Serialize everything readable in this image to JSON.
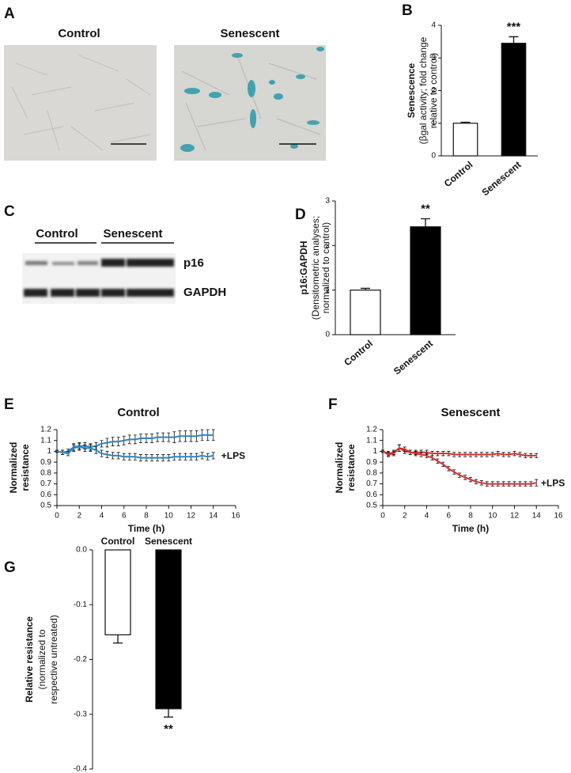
{
  "figure_panels": {
    "A": {
      "label": "A",
      "titles": [
        "Control",
        "Senescent"
      ]
    },
    "C": {
      "label": "C",
      "groups": [
        "Control",
        "Senescent"
      ],
      "bands": [
        "p16",
        "GAPDH"
      ]
    }
  },
  "chart_data": [
    {
      "type": "bar",
      "label": "B",
      "categories": [
        "Control",
        "Senescent"
      ],
      "values": [
        1.0,
        3.45
      ],
      "errors": [
        0.03,
        0.2
      ],
      "colors": [
        "#ffffff",
        "#000000"
      ],
      "ylim": [
        0,
        4
      ],
      "yticks": [
        0,
        1,
        2,
        3,
        4
      ],
      "ylabel": [
        "Senescence",
        "(βgal activity; fold change",
        "relative to control)"
      ],
      "annotations": [
        {
          "text": "***",
          "index": 1
        }
      ]
    },
    {
      "type": "bar",
      "label": "D",
      "categories": [
        "Control",
        "Senescent"
      ],
      "values": [
        1.0,
        2.42
      ],
      "errors": [
        0.04,
        0.18
      ],
      "colors": [
        "#ffffff",
        "#000000"
      ],
      "ylim": [
        0,
        3
      ],
      "yticks": [
        0,
        1,
        2,
        3
      ],
      "ylabel": [
        "p16:GAPDH",
        "(Densitometric analyses;",
        "normalized to control)"
      ],
      "annotations": [
        {
          "text": "**",
          "index": 1
        }
      ]
    },
    {
      "type": "line",
      "label": "E",
      "title": "Control",
      "x": [
        0,
        0.5,
        1,
        1.5,
        2,
        2.5,
        3,
        3.5,
        4,
        4.5,
        5,
        5.5,
        6,
        6.5,
        7,
        7.5,
        8,
        8.5,
        9,
        9.5,
        10,
        10.5,
        11,
        11.5,
        12,
        12.5,
        13,
        13.5,
        14
      ],
      "xlim": [
        0,
        16
      ],
      "xticks": [
        0,
        2,
        4,
        6,
        8,
        10,
        12,
        14,
        16
      ],
      "ylim": [
        0.5,
        1.2
      ],
      "yticks": [
        0.5,
        0.6,
        0.7,
        0.8,
        0.9,
        1,
        1.1,
        1.2
      ],
      "xlabel": "Time (h)",
      "ylabel": [
        "Normalized",
        "resistance"
      ],
      "series": [
        {
          "color": "#2e86c1",
          "values": [
            1.0,
            0.99,
            1.0,
            1.04,
            1.05,
            1.05,
            1.04,
            1.05,
            1.07,
            1.08,
            1.09,
            1.09,
            1.1,
            1.11,
            1.11,
            1.12,
            1.12,
            1.12,
            1.13,
            1.13,
            1.13,
            1.13,
            1.14,
            1.14,
            1.14,
            1.14,
            1.15,
            1.15,
            1.15
          ],
          "errors": [
            0.01,
            0.02,
            0.02,
            0.03,
            0.03,
            0.03,
            0.03,
            0.03,
            0.03,
            0.04,
            0.04,
            0.04,
            0.04,
            0.04,
            0.04,
            0.04,
            0.04,
            0.04,
            0.04,
            0.04,
            0.04,
            0.05,
            0.05,
            0.05,
            0.05,
            0.05,
            0.05,
            0.05,
            0.05
          ]
        },
        {
          "color": "#2e86c1",
          "values": [
            1.0,
            0.99,
            0.98,
            1.03,
            1.04,
            1.03,
            1.03,
            1.01,
            0.98,
            0.97,
            0.96,
            0.96,
            0.95,
            0.95,
            0.95,
            0.94,
            0.94,
            0.94,
            0.94,
            0.94,
            0.94,
            0.95,
            0.95,
            0.95,
            0.95,
            0.95,
            0.96,
            0.95,
            0.96
          ],
          "errors": [
            0.01,
            0.02,
            0.02,
            0.03,
            0.03,
            0.03,
            0.03,
            0.03,
            0.03,
            0.03,
            0.03,
            0.03,
            0.03,
            0.03,
            0.03,
            0.03,
            0.03,
            0.03,
            0.03,
            0.03,
            0.03,
            0.03,
            0.03,
            0.03,
            0.03,
            0.03,
            0.03,
            0.03,
            0.03
          ]
        }
      ],
      "annotations": [
        {
          "text": "+LPS",
          "series": 1
        }
      ]
    },
    {
      "type": "line",
      "label": "F",
      "title": "Senescent",
      "x": [
        0,
        0.5,
        1,
        1.5,
        2,
        2.5,
        3,
        3.5,
        4,
        4.5,
        5,
        5.5,
        6,
        6.5,
        7,
        7.5,
        8,
        8.5,
        9,
        9.5,
        10,
        10.5,
        11,
        11.5,
        12,
        12.5,
        13,
        13.5,
        14
      ],
      "xlim": [
        0,
        16
      ],
      "xticks": [
        0,
        2,
        4,
        6,
        8,
        10,
        12,
        14,
        16
      ],
      "ylim": [
        0.5,
        1.2
      ],
      "yticks": [
        0.5,
        0.6,
        0.7,
        0.8,
        0.9,
        1,
        1.1,
        1.2
      ],
      "xlabel": "Time (h)",
      "ylabel": [
        "Normalized",
        "resistance"
      ],
      "series": [
        {
          "color": "#d62f2f",
          "values": [
            1.0,
            0.98,
            0.99,
            1.03,
            1.0,
            0.99,
            0.99,
            0.99,
            0.99,
            0.98,
            0.98,
            0.98,
            0.98,
            0.97,
            0.97,
            0.97,
            0.97,
            0.97,
            0.97,
            0.97,
            0.97,
            0.98,
            0.97,
            0.97,
            0.98,
            0.97,
            0.96,
            0.96,
            0.96
          ],
          "errors": [
            0.01,
            0.02,
            0.02,
            0.03,
            0.02,
            0.02,
            0.02,
            0.02,
            0.02,
            0.02,
            0.02,
            0.02,
            0.02,
            0.02,
            0.02,
            0.02,
            0.02,
            0.02,
            0.02,
            0.02,
            0.02,
            0.02,
            0.02,
            0.02,
            0.02,
            0.02,
            0.02,
            0.02,
            0.02
          ]
        },
        {
          "color": "#d62f2f",
          "values": [
            1.0,
            0.97,
            0.98,
            1.03,
            1.02,
            0.99,
            0.98,
            0.97,
            0.96,
            0.94,
            0.91,
            0.88,
            0.84,
            0.81,
            0.78,
            0.76,
            0.74,
            0.72,
            0.71,
            0.7,
            0.7,
            0.7,
            0.7,
            0.7,
            0.7,
            0.7,
            0.7,
            0.7,
            0.71
          ],
          "errors": [
            0.01,
            0.02,
            0.02,
            0.03,
            0.02,
            0.02,
            0.02,
            0.02,
            0.02,
            0.02,
            0.02,
            0.02,
            0.02,
            0.02,
            0.02,
            0.02,
            0.02,
            0.02,
            0.02,
            0.02,
            0.02,
            0.02,
            0.02,
            0.02,
            0.02,
            0.02,
            0.02,
            0.02,
            0.03
          ]
        }
      ],
      "annotations": [
        {
          "text": "+LPS",
          "series": 1
        }
      ]
    },
    {
      "type": "bar",
      "label": "G",
      "categories": [
        "Control",
        "Senescent"
      ],
      "values": [
        -0.155,
        -0.29
      ],
      "errors": [
        0.015,
        0.015
      ],
      "colors": [
        "#ffffff",
        "#000000"
      ],
      "ylim": [
        -0.4,
        0
      ],
      "yticks": [
        {
          "value": 0,
          "label": "0.0"
        },
        -0.1,
        -0.2,
        -0.3,
        -0.4
      ],
      "ylabel": [
        "Relative resistance",
        "(normalized to",
        "respective untreated)"
      ],
      "annotations": [
        {
          "text": "**",
          "index": 1
        }
      ]
    }
  ]
}
